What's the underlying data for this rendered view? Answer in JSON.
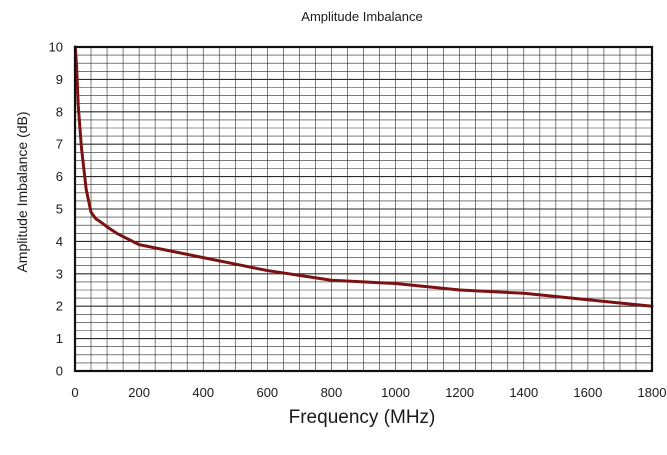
{
  "chart_data": {
    "type": "line",
    "title": "Amplitude Imbalance",
    "xlabel": "Frequency (MHz)",
    "ylabel": "Amplitude Imbalance (dB)",
    "xlim": [
      0,
      1800
    ],
    "ylim": [
      0,
      10
    ],
    "x_ticks": [
      0,
      200,
      400,
      600,
      800,
      1000,
      1200,
      1400,
      1600,
      1800
    ],
    "y_ticks": [
      0,
      1,
      2,
      3,
      4,
      5,
      6,
      7,
      8,
      9,
      10
    ],
    "grid": true,
    "legend": "none",
    "series": [
      {
        "color": "#7a1212",
        "x": [
          1,
          5,
          10,
          20,
          35,
          50,
          65,
          80,
          100,
          130,
          160,
          200,
          300,
          400,
          500,
          600,
          700,
          800,
          900,
          1000,
          1100,
          1200,
          1300,
          1400,
          1500,
          1600,
          1700,
          1800
        ],
        "y": [
          10,
          9.4,
          8.2,
          6.9,
          5.6,
          4.9,
          4.7,
          4.6,
          4.45,
          4.25,
          4.1,
          3.9,
          3.7,
          3.5,
          3.3,
          3.1,
          2.95,
          2.8,
          2.75,
          2.7,
          2.6,
          2.5,
          2.45,
          2.4,
          2.3,
          2.2,
          2.1,
          2.0
        ]
      }
    ]
  }
}
